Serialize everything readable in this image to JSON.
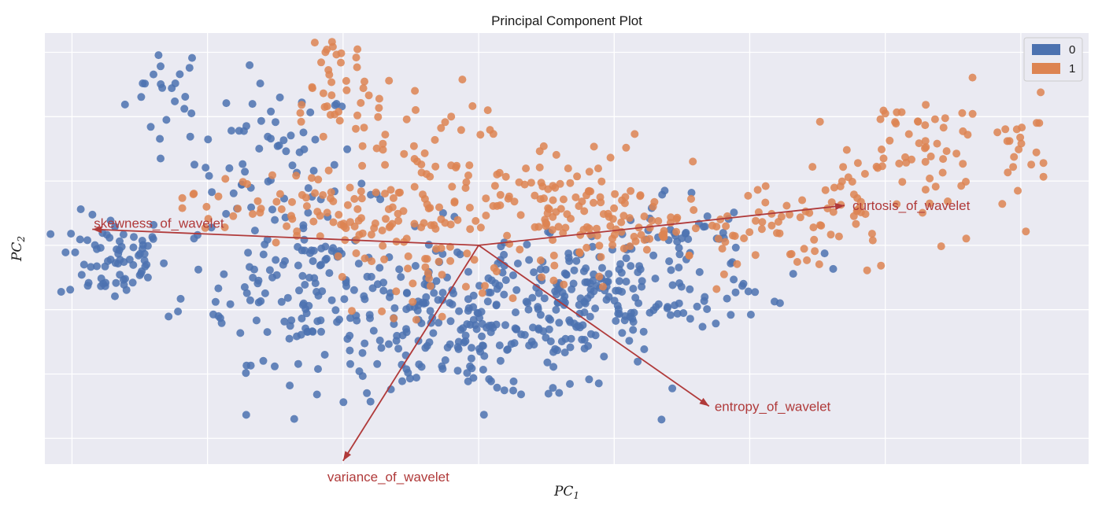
{
  "chart_data": {
    "type": "scatter",
    "title": "Principal Component Plot",
    "xlabel": "PC",
    "xlabel_sub": "1",
    "ylabel": "PC",
    "ylabel_sub": "2",
    "xlim": [
      -3.2,
      4.5
    ],
    "ylim": [
      -3.4,
      3.3
    ],
    "grid": true,
    "tick_labels_shown": false,
    "legend": {
      "placement": "top-right"
    },
    "colors": {
      "class_0": "#4c72b0",
      "class_1": "#dd8452",
      "loadings": "#b03a3a",
      "axes_background": "#eaeaf2",
      "grid": "#ffffff"
    },
    "x_gridlines": [
      -3,
      -2,
      -1,
      0,
      1,
      2,
      3,
      4
    ],
    "y_gridlines": [
      -3,
      -2,
      -1,
      0,
      1,
      2,
      3
    ],
    "series": [
      {
        "name": "0",
        "color": "#4c72b0",
        "clusters": [
          {
            "x": -2.3,
            "y": 2.4,
            "sx": 0.15,
            "sy": 0.4,
            "n": 22
          },
          {
            "x": -1.5,
            "y": 1.3,
            "sx": 0.3,
            "sy": 0.6,
            "n": 60
          },
          {
            "x": -2.7,
            "y": -0.2,
            "sx": 0.2,
            "sy": 0.35,
            "n": 70
          },
          {
            "x": -1.2,
            "y": -0.6,
            "sx": 0.5,
            "sy": 0.6,
            "n": 150
          },
          {
            "x": 0.0,
            "y": -1.3,
            "sx": 0.6,
            "sy": 0.55,
            "n": 230
          },
          {
            "x": 0.9,
            "y": -0.8,
            "sx": 0.45,
            "sy": 0.45,
            "n": 130
          },
          {
            "x": 1.4,
            "y": 0.1,
            "sx": 0.3,
            "sy": 0.4,
            "n": 40
          },
          {
            "x": 1.9,
            "y": -0.4,
            "sx": 0.3,
            "sy": 0.35,
            "n": 22
          }
        ]
      },
      {
        "name": "1",
        "color": "#dd8452",
        "clusters": [
          {
            "x": -1.1,
            "y": 2.5,
            "sx": 0.2,
            "sy": 0.5,
            "n": 35
          },
          {
            "x": -0.6,
            "y": 1.5,
            "sx": 0.3,
            "sy": 0.6,
            "n": 45
          },
          {
            "x": -1.7,
            "y": 0.6,
            "sx": 0.25,
            "sy": 0.35,
            "n": 25
          },
          {
            "x": -0.8,
            "y": 0.4,
            "sx": 0.45,
            "sy": 0.4,
            "n": 80
          },
          {
            "x": 0.4,
            "y": 0.7,
            "sx": 0.45,
            "sy": 0.5,
            "n": 90
          },
          {
            "x": 1.1,
            "y": 0.3,
            "sx": 0.4,
            "sy": 0.3,
            "n": 80
          },
          {
            "x": -0.4,
            "y": -0.5,
            "sx": 0.25,
            "sy": 0.3,
            "n": 25
          },
          {
            "x": 2.2,
            "y": 0.2,
            "sx": 0.35,
            "sy": 0.3,
            "n": 45
          },
          {
            "x": 2.9,
            "y": 0.8,
            "sx": 0.35,
            "sy": 0.5,
            "n": 55
          },
          {
            "x": 3.3,
            "y": 1.7,
            "sx": 0.3,
            "sy": 0.35,
            "n": 35
          },
          {
            "x": 4.0,
            "y": 1.7,
            "sx": 0.1,
            "sy": 0.6,
            "n": 18
          }
        ]
      }
    ],
    "loadings": [
      {
        "name": "skewness_of_wavelet",
        "x": -2.85,
        "y": 0.25,
        "label_anchor": "start",
        "label_dx": 2,
        "label_dy": -2
      },
      {
        "name": "curtosis_of_wavelet",
        "x": 2.7,
        "y": 0.62,
        "label_anchor": "start",
        "label_dx": 10,
        "label_dy": 6
      },
      {
        "name": "entropy_of_wavelet",
        "x": 1.7,
        "y": -2.5,
        "label_anchor": "start",
        "label_dx": 7,
        "label_dy": 6
      },
      {
        "name": "variance_of_wavelet",
        "x": -1.0,
        "y": -3.35,
        "label_anchor": "start",
        "label_dx": -20,
        "label_dy": 26
      }
    ]
  }
}
